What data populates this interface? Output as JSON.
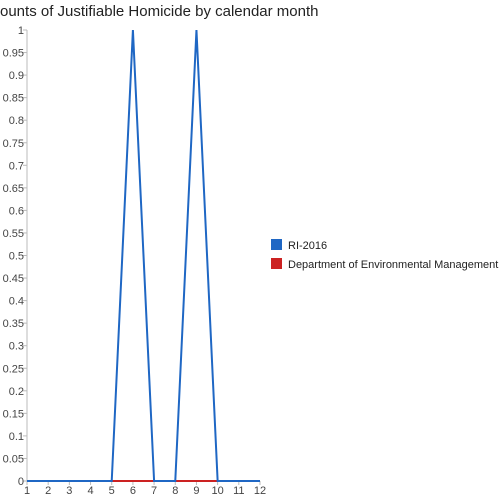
{
  "chart_data": {
    "type": "line",
    "title": "ounts of Justifiable Homicide by calendar month",
    "x": [
      1,
      2,
      3,
      4,
      5,
      6,
      7,
      8,
      9,
      10,
      11,
      12
    ],
    "xlim": [
      1,
      12
    ],
    "ylim": [
      0,
      1
    ],
    "ytick_step": 0.05,
    "grid": false,
    "legend_position": "right",
    "series": [
      {
        "name": "RI-2016",
        "color": "#1f67c4",
        "values": [
          0,
          0,
          0,
          0,
          0,
          1,
          0,
          0,
          1,
          0,
          0,
          0
        ]
      },
      {
        "name": "Department of Environmental Management",
        "color": "#cc2222",
        "values": [
          0,
          0,
          0,
          0,
          0,
          0,
          0,
          0,
          0,
          0,
          0,
          0
        ]
      }
    ]
  }
}
